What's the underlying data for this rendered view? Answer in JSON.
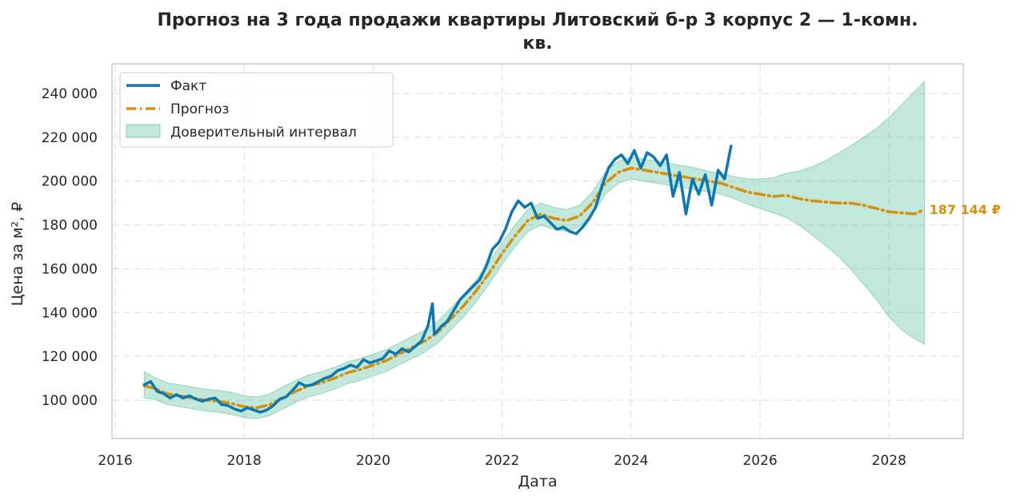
{
  "chart_data": {
    "type": "line",
    "title": "Прогноз на 3 года продажи квартиры  Литовский б-р 3 корпус 2 — 1-комн. кв.",
    "title_lines": [
      "Прогноз на 3 года продажи квартиры  Литовский б-р 3 корпус 2 — 1-комн.",
      "кв."
    ],
    "xlabel": "Дата",
    "ylabel": "Цена за м², ₽",
    "xlim": [
      2015.95,
      2029.15
    ],
    "ylim": [
      82500,
      253500
    ],
    "x_ticks": [
      2016,
      2018,
      2020,
      2022,
      2024,
      2026,
      2028
    ],
    "x_tick_labels": [
      "2016",
      "2018",
      "2020",
      "2022",
      "2024",
      "2026",
      "2028"
    ],
    "y_ticks": [
      100000,
      120000,
      140000,
      160000,
      180000,
      200000,
      220000,
      240000
    ],
    "y_tick_labels": [
      "100 000",
      "120 000",
      "140 000",
      "160 000",
      "180 000",
      "200 000",
      "220 000",
      "240 000"
    ],
    "grid": true,
    "legend_position": "top-left",
    "end_label": "187 144 ₽",
    "series": [
      {
        "name": "Факт",
        "color": "#0f77b0",
        "style": "solid",
        "x": [
          2016.45,
          2016.55,
          2016.65,
          2016.75,
          2016.85,
          2016.95,
          2017.05,
          2017.15,
          2017.25,
          2017.35,
          2017.45,
          2017.55,
          2017.65,
          2017.75,
          2017.85,
          2017.95,
          2018.05,
          2018.15,
          2018.25,
          2018.35,
          2018.45,
          2018.55,
          2018.65,
          2018.75,
          2018.85,
          2018.95,
          2019.05,
          2019.15,
          2019.25,
          2019.35,
          2019.45,
          2019.55,
          2019.65,
          2019.75,
          2019.85,
          2019.95,
          2020.05,
          2020.15,
          2020.25,
          2020.35,
          2020.45,
          2020.55,
          2020.65,
          2020.75,
          2020.85,
          2020.92,
          2020.95,
          2021.05,
          2021.15,
          2021.25,
          2021.35,
          2021.45,
          2021.55,
          2021.65,
          2021.75,
          2021.85,
          2021.95,
          2022.05,
          2022.15,
          2022.25,
          2022.35,
          2022.45,
          2022.55,
          2022.65,
          2022.75,
          2022.85,
          2022.95,
          2023.05,
          2023.15,
          2023.25,
          2023.35,
          2023.45,
          2023.55,
          2023.65,
          2023.75,
          2023.85,
          2023.95,
          2024.05,
          2024.15,
          2024.25,
          2024.35,
          2024.45,
          2024.55,
          2024.65,
          2024.75,
          2024.85,
          2024.95,
          2025.05,
          2025.15,
          2025.25,
          2025.35,
          2025.45,
          2025.55
        ],
        "values": [
          107000,
          108500,
          104000,
          103000,
          101000,
          102500,
          101000,
          102000,
          100500,
          99500,
          100500,
          101000,
          98000,
          97500,
          96000,
          95000,
          96500,
          95500,
          94500,
          95500,
          97500,
          100500,
          101500,
          104500,
          108000,
          106500,
          107000,
          108500,
          110000,
          111000,
          113500,
          114500,
          116000,
          115000,
          118500,
          117000,
          118000,
          119000,
          122500,
          121000,
          123500,
          122000,
          124500,
          127000,
          134000,
          144000,
          130000,
          133500,
          136000,
          141000,
          146000,
          149000,
          152000,
          155000,
          161000,
          169000,
          172000,
          178000,
          186000,
          191000,
          188000,
          190000,
          183000,
          184000,
          181000,
          178000,
          179000,
          177000,
          176000,
          179000,
          183000,
          188000,
          198000,
          206000,
          210000,
          212000,
          208000,
          214000,
          206000,
          213000,
          211000,
          207000,
          212000,
          193000,
          204000,
          185000,
          201000,
          194000,
          203000,
          189000,
          205000,
          201000,
          216000
        ]
      },
      {
        "name": "Прогноз",
        "color": "#d4900f",
        "style": "dashdot",
        "x": [
          2016.45,
          2016.6,
          2016.8,
          2017.0,
          2017.2,
          2017.4,
          2017.6,
          2017.8,
          2018.0,
          2018.2,
          2018.4,
          2018.6,
          2018.8,
          2019.0,
          2019.2,
          2019.4,
          2019.6,
          2019.8,
          2020.0,
          2020.2,
          2020.4,
          2020.6,
          2020.8,
          2021.0,
          2021.2,
          2021.4,
          2021.6,
          2021.8,
          2022.0,
          2022.2,
          2022.4,
          2022.6,
          2022.8,
          2023.0,
          2023.2,
          2023.4,
          2023.6,
          2023.8,
          2024.0,
          2024.2,
          2024.4,
          2024.6,
          2024.8,
          2025.0,
          2025.2,
          2025.4,
          2025.6,
          2025.8,
          2026.0,
          2026.2,
          2026.4,
          2026.6,
          2026.8,
          2027.0,
          2027.2,
          2027.4,
          2027.6,
          2027.8,
          2028.0,
          2028.2,
          2028.4,
          2028.55
        ],
        "values": [
          106500,
          105500,
          103000,
          102000,
          101000,
          100000,
          99500,
          98500,
          97000,
          96500,
          98000,
          101000,
          104000,
          106500,
          108000,
          110000,
          112500,
          114000,
          116000,
          118000,
          121000,
          124000,
          127000,
          131000,
          137000,
          143000,
          150000,
          158000,
          167000,
          175000,
          182000,
          185000,
          183000,
          182000,
          184000,
          190000,
          199000,
          204000,
          206000,
          205000,
          204000,
          203000,
          202000,
          201000,
          200000,
          199000,
          197000,
          195000,
          194000,
          193000,
          193500,
          192000,
          191000,
          190500,
          190000,
          190000,
          189000,
          187500,
          186000,
          185500,
          185000,
          187144
        ]
      }
    ],
    "confidence_interval": {
      "name": "Доверительный интервал",
      "color": "#66c2a5",
      "x": [
        2016.45,
        2016.6,
        2016.8,
        2017.0,
        2017.2,
        2017.4,
        2017.6,
        2017.8,
        2018.0,
        2018.2,
        2018.4,
        2018.6,
        2018.8,
        2019.0,
        2019.2,
        2019.4,
        2019.6,
        2019.8,
        2020.0,
        2020.2,
        2020.4,
        2020.6,
        2020.8,
        2021.0,
        2021.2,
        2021.4,
        2021.6,
        2021.8,
        2022.0,
        2022.2,
        2022.4,
        2022.6,
        2022.8,
        2023.0,
        2023.2,
        2023.4,
        2023.6,
        2023.8,
        2024.0,
        2024.2,
        2024.4,
        2024.6,
        2024.8,
        2025.0,
        2025.2,
        2025.4,
        2025.6,
        2025.8,
        2026.0,
        2026.2,
        2026.4,
        2026.6,
        2026.8,
        2027.0,
        2027.2,
        2027.4,
        2027.6,
        2027.8,
        2028.0,
        2028.2,
        2028.4,
        2028.55
      ],
      "upper": [
        113000,
        110500,
        108000,
        107000,
        106000,
        105000,
        104500,
        103500,
        102000,
        101500,
        103000,
        106000,
        109000,
        111500,
        113000,
        115000,
        117500,
        119000,
        121000,
        123000,
        126000,
        129000,
        132000,
        136000,
        142000,
        148000,
        155000,
        163000,
        172000,
        180000,
        187000,
        190000,
        188000,
        187000,
        189000,
        195000,
        204000,
        209000,
        211000,
        210000,
        209000,
        208000,
        207000,
        206000,
        204500,
        203500,
        202000,
        201000,
        201000,
        201500,
        203500,
        204500,
        206500,
        209000,
        212500,
        216000,
        220000,
        224000,
        229000,
        235000,
        241000,
        245500
      ],
      "lower": [
        101000,
        100500,
        98000,
        97000,
        96000,
        95000,
        94500,
        93500,
        92000,
        91500,
        93000,
        96000,
        99000,
        101500,
        103000,
        105000,
        107500,
        109000,
        111000,
        113000,
        116000,
        119000,
        122000,
        126000,
        132000,
        138000,
        145000,
        153000,
        162000,
        170000,
        177000,
        180000,
        178000,
        177000,
        179000,
        185000,
        194000,
        199000,
        201000,
        200000,
        199000,
        198000,
        197000,
        196000,
        195000,
        194000,
        192000,
        189500,
        187500,
        185500,
        183500,
        180000,
        175500,
        171000,
        166000,
        160000,
        153000,
        146000,
        138000,
        132000,
        128000,
        125500
      ]
    }
  }
}
